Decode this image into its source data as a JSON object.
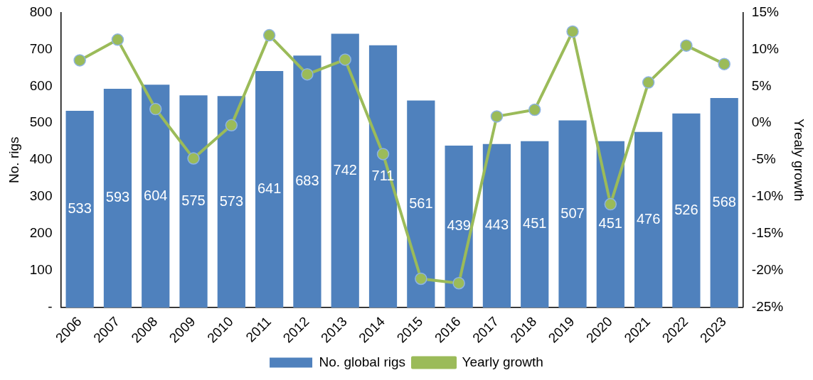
{
  "chart_data": {
    "type": "bar",
    "categories": [
      "2006",
      "2007",
      "2008",
      "2009",
      "2010",
      "2011",
      "2012",
      "2013",
      "2014",
      "2015",
      "2016",
      "2017",
      "2018",
      "2019",
      "2020",
      "2021",
      "2022",
      "2023"
    ],
    "series": [
      {
        "name": "No. global rigs",
        "color": "#4f81bd",
        "values": [
          533,
          593,
          604,
          575,
          573,
          641,
          683,
          742,
          711,
          561,
          439,
          443,
          451,
          507,
          451,
          476,
          526,
          568
        ],
        "value_labels": [
          "533",
          "593",
          "604",
          "575",
          "573",
          "641",
          "683",
          "742",
          "711",
          "561",
          "439",
          "443",
          "451",
          "507",
          "451",
          "476",
          "526",
          "568"
        ]
      },
      {
        "name": "Yearly growth",
        "type": "line",
        "axis": "y2",
        "color": "#9bbb59",
        "values": [
          8.5,
          11.3,
          1.9,
          -4.8,
          -0.3,
          11.9,
          6.6,
          8.6,
          -4.2,
          -21.1,
          -21.7,
          0.9,
          1.8,
          12.4,
          -11.0,
          5.5,
          10.5,
          8.0
        ]
      }
    ],
    "ylabel": "No. rigs",
    "y2label": "Yrealy growth",
    "ylim": [
      0,
      800
    ],
    "yticks": [
      {
        "value": 0,
        "label": "-"
      },
      100,
      200,
      300,
      400,
      500,
      600,
      700,
      800
    ],
    "y2lim": [
      -25,
      15
    ],
    "y2ticks": [
      {
        "value": -25,
        "label": "-25%"
      },
      {
        "value": -20,
        "label": "-20%"
      },
      {
        "value": -15,
        "label": "-15%"
      },
      {
        "value": -10,
        "label": "-10%"
      },
      {
        "value": -5,
        "label": "-5%"
      },
      {
        "value": 0,
        "label": "0%"
      },
      {
        "value": 5,
        "label": "5%"
      },
      {
        "value": 10,
        "label": "10%"
      },
      {
        "value": 15,
        "label": "15%"
      }
    ],
    "legend": "bottom",
    "marker": "circle",
    "grid": false
  }
}
